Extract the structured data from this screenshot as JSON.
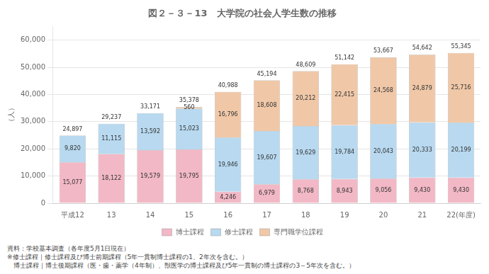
{
  "chart_data": {
    "type": "bar",
    "title": "図２－３－13　大学院の社会人学生数の推移",
    "categories": [
      "平成12",
      "13",
      "14",
      "15",
      "16",
      "17",
      "18",
      "19",
      "20",
      "21",
      "22(年度)"
    ],
    "series": [
      {
        "name": "博士課程",
        "color": "#f2b8c6",
        "values": [
          15077,
          18122,
          19579,
          19795,
          4246,
          6979,
          8768,
          8943,
          9056,
          9430,
          9430
        ],
        "value_labels": [
          "15,077",
          "18,122",
          "19,579",
          "19,795",
          "4,246",
          "6,979",
          "8,768",
          "8,943",
          "9,056",
          "9,430",
          "9,430"
        ]
      },
      {
        "name": "修士課程",
        "color": "#b8d9f0",
        "values": [
          9820,
          11115,
          13592,
          15023,
          19946,
          19607,
          19629,
          19784,
          20043,
          20333,
          20199
        ],
        "value_labels": [
          "9,820",
          "11,115",
          "13,592",
          "15,023",
          "19,946",
          "19,607",
          "19,629",
          "19,784",
          "20,043",
          "20,333",
          "20,199"
        ]
      },
      {
        "name": "専門職学位課程",
        "color": "#f0c8a8",
        "values": [
          0,
          0,
          0,
          560,
          16796,
          18608,
          20212,
          22415,
          24568,
          24879,
          25716
        ],
        "value_labels": [
          null,
          null,
          null,
          "560",
          "16,796",
          "18,608",
          "20,212",
          "22,415",
          "24,568",
          "24,879",
          "25,716"
        ]
      }
    ],
    "totals": [
      24897,
      29237,
      33171,
      35378,
      40988,
      45194,
      48609,
      51142,
      53667,
      54642,
      55345
    ],
    "total_labels": [
      "24,897",
      "29,237",
      "33,171",
      "35,378",
      "40,988",
      "45,194",
      "48,609",
      "51,142",
      "53,667",
      "54,642",
      "55,345"
    ],
    "stacked": true,
    "data_labels": true,
    "ylabel": "（人）",
    "ylim": [
      0,
      65000
    ],
    "yticks": [
      0,
      {
        "value": 10000,
        "label": "10,000"
      },
      {
        "value": 20000,
        "label": "20,000"
      },
      {
        "value": 30000,
        "label": "30,000"
      },
      {
        "value": 40000,
        "label": "40,000"
      },
      {
        "value": 50000,
        "label": "50,000"
      },
      {
        "value": 60000,
        "label": "60,000"
      }
    ],
    "grid": "y",
    "legend": "bottom",
    "notes": [
      "資料：学校基本調査（各年度5月1日現在）",
      "※修士課程｜修士課程及び博士前期課程（5年一貫制博士課程の1、2年次を含む。）",
      "　博士課程｜博士後期課程（医・歯・薬学（4年制）、獣医学の博士課程及び5年一貫制の博士課程の3～5年次を含む。）"
    ]
  }
}
